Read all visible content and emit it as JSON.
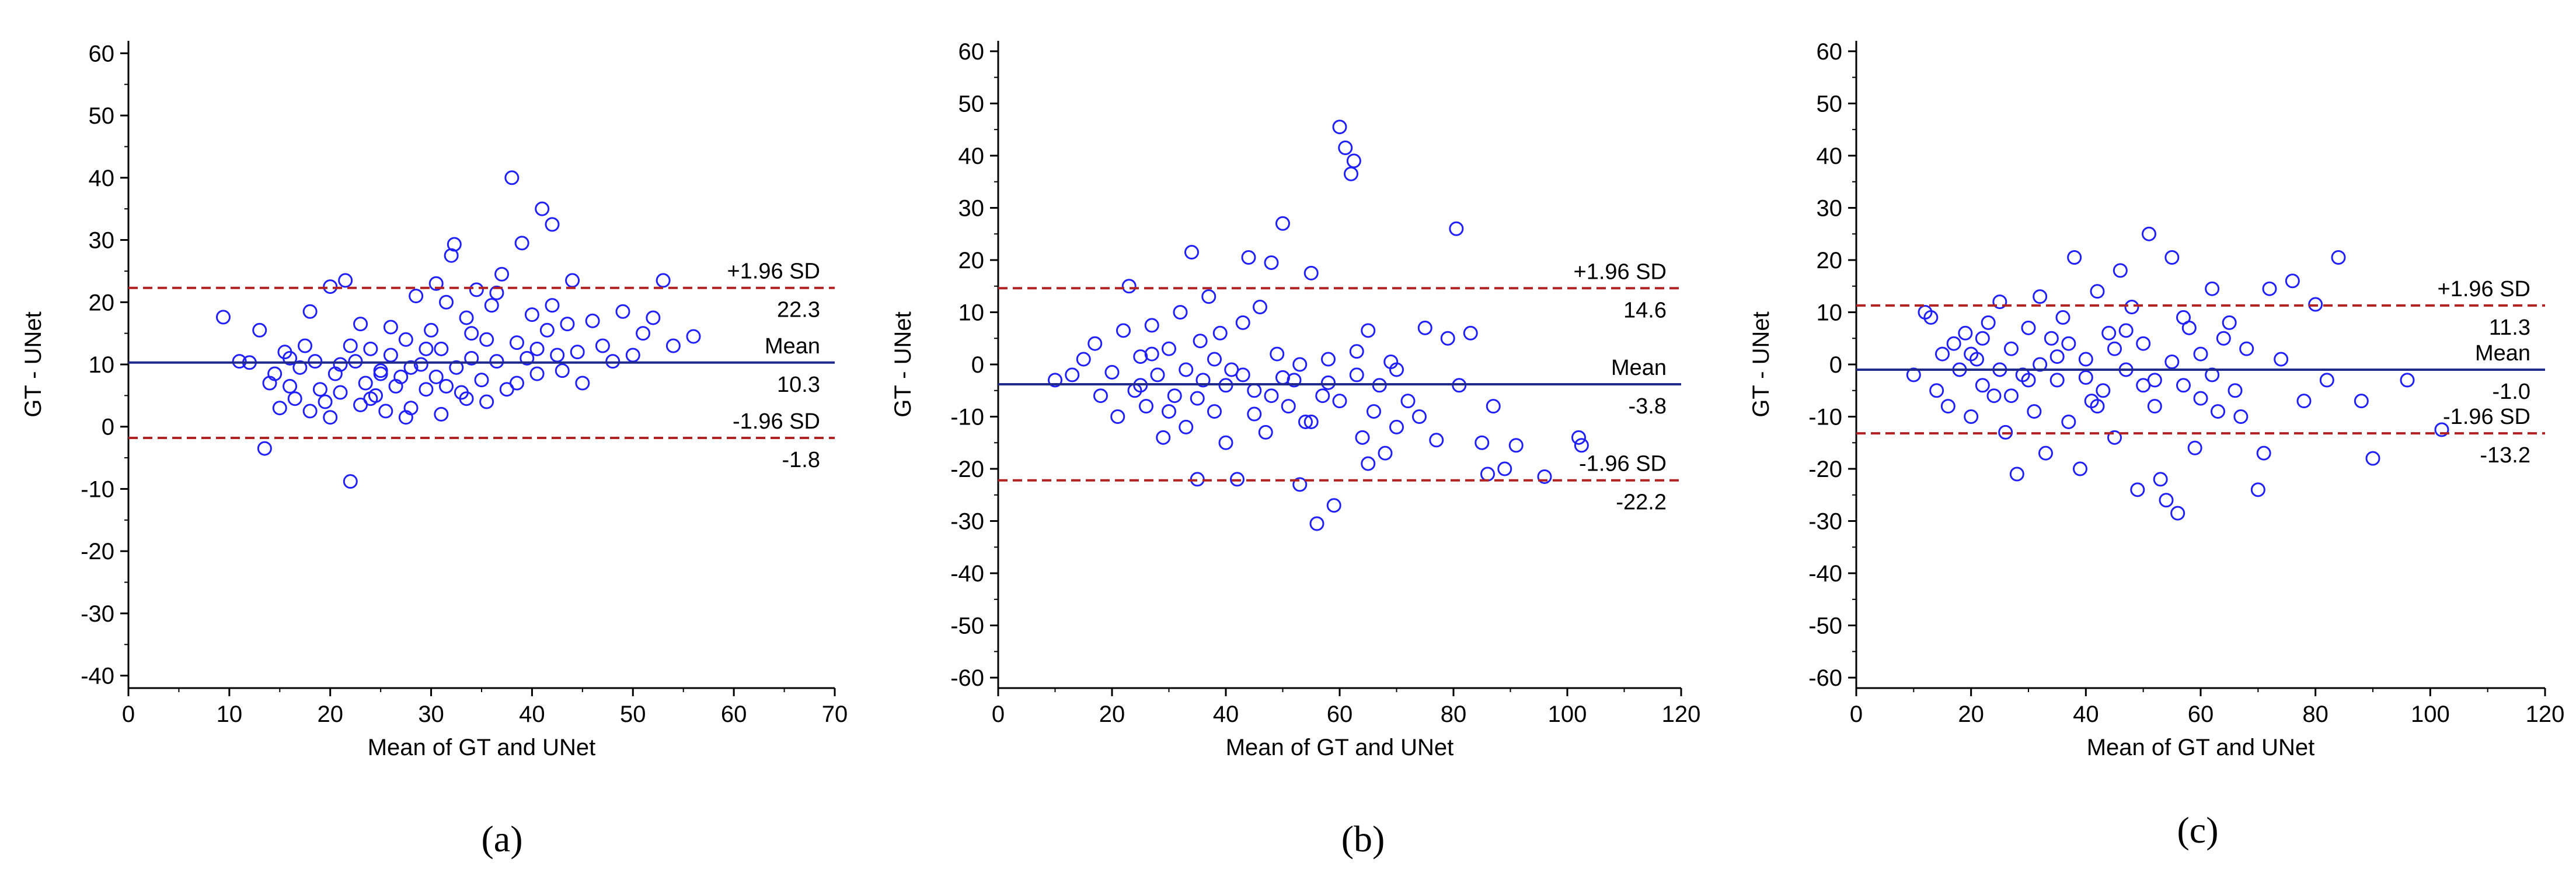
{
  "chart_data": [
    {
      "type": "scatter",
      "panel_caption": "(a)",
      "xlabel": "Mean of GT and UNet",
      "ylabel": "GT - UNet",
      "xlim": [
        0,
        70
      ],
      "ylim": [
        -42,
        62
      ],
      "xticks": [
        0,
        10,
        20,
        30,
        40,
        50,
        60,
        70
      ],
      "yticks": [
        -40,
        -30,
        -20,
        -10,
        0,
        10,
        20,
        30,
        40,
        50,
        60
      ],
      "marker_color": "#1f1fff",
      "mean_line_color": "#1f2a8a",
      "limit_line_color": "#b22222",
      "upper_label": "+1.96 SD",
      "upper_value": "22.3",
      "mean_label": "Mean",
      "mean_value": "10.3",
      "lower_label": "-1.96 SD",
      "lower_value": "-1.8",
      "upper": 22.3,
      "mean": 10.3,
      "lower": -1.8,
      "points": [
        [
          9.4,
          17.6
        ],
        [
          11.0,
          10.5
        ],
        [
          12.0,
          10.3
        ],
        [
          13.5,
          -3.5
        ],
        [
          13.0,
          15.5
        ],
        [
          14.0,
          7.0
        ],
        [
          14.5,
          8.5
        ],
        [
          15.0,
          3.0
        ],
        [
          15.5,
          12.0
        ],
        [
          16.0,
          6.5
        ],
        [
          16.5,
          4.5
        ],
        [
          17.0,
          9.5
        ],
        [
          17.5,
          13.0
        ],
        [
          18.0,
          18.5
        ],
        [
          18.5,
          10.5
        ],
        [
          19.0,
          6.0
        ],
        [
          19.5,
          4.0
        ],
        [
          20.0,
          22.5
        ],
        [
          20.5,
          8.5
        ],
        [
          21.0,
          5.5
        ],
        [
          21.5,
          23.5
        ],
        [
          22.0,
          -8.8
        ],
        [
          22.5,
          10.5
        ],
        [
          23.0,
          3.5
        ],
        [
          23.5,
          7.0
        ],
        [
          24.0,
          12.5
        ],
        [
          24.5,
          5.0
        ],
        [
          25.0,
          9.0
        ],
        [
          25.5,
          2.5
        ],
        [
          26.0,
          11.5
        ],
        [
          26.5,
          6.5
        ],
        [
          27.0,
          8.0
        ],
        [
          27.5,
          14.0
        ],
        [
          28.0,
          3.0
        ],
        [
          28.5,
          21.0
        ],
        [
          29.0,
          10.0
        ],
        [
          29.5,
          6.0
        ],
        [
          30.0,
          15.5
        ],
        [
          30.5,
          8.0
        ],
        [
          31.0,
          12.5
        ],
        [
          31.5,
          20.0
        ],
        [
          32.0,
          27.5
        ],
        [
          32.5,
          9.5
        ],
        [
          33.0,
          5.5
        ],
        [
          33.5,
          17.5
        ],
        [
          34.0,
          11.0
        ],
        [
          34.5,
          22.0
        ],
        [
          35.0,
          7.5
        ],
        [
          35.5,
          14.0
        ],
        [
          36.0,
          19.5
        ],
        [
          36.5,
          10.5
        ],
        [
          37.0,
          24.5
        ],
        [
          37.5,
          6.0
        ],
        [
          38.0,
          40.0
        ],
        [
          38.5,
          13.5
        ],
        [
          39.0,
          29.5
        ],
        [
          39.5,
          11.0
        ],
        [
          40.0,
          18.0
        ],
        [
          40.5,
          8.5
        ],
        [
          41.0,
          35.0
        ],
        [
          41.5,
          15.5
        ],
        [
          42.0,
          32.5
        ],
        [
          42.5,
          11.5
        ],
        [
          43.0,
          9.0
        ],
        [
          43.5,
          16.5
        ],
        [
          44.0,
          23.5
        ],
        [
          44.5,
          12.0
        ],
        [
          45.0,
          7.0
        ],
        [
          46.0,
          17.0
        ],
        [
          47.0,
          13.0
        ],
        [
          48.0,
          10.5
        ],
        [
          49.0,
          18.5
        ],
        [
          50.0,
          11.5
        ],
        [
          51.0,
          15.0
        ],
        [
          52.0,
          17.5
        ],
        [
          53.0,
          23.5
        ],
        [
          54.0,
          13.0
        ],
        [
          56.0,
          14.5
        ],
        [
          32.3,
          29.3
        ],
        [
          30.5,
          23.0
        ],
        [
          33.5,
          4.5
        ],
        [
          31.0,
          2.0
        ],
        [
          27.5,
          1.5
        ],
        [
          20.0,
          1.5
        ],
        [
          22.0,
          13.0
        ],
        [
          25.0,
          8.5
        ],
        [
          29.5,
          12.5
        ],
        [
          35.5,
          4.0
        ],
        [
          38.5,
          7.0
        ],
        [
          24.0,
          4.5
        ],
        [
          21.0,
          10.0
        ],
        [
          18.0,
          2.5
        ],
        [
          16.0,
          11.0
        ],
        [
          26.0,
          16.0
        ],
        [
          28.0,
          9.5
        ],
        [
          34.0,
          15.0
        ],
        [
          36.5,
          21.5
        ],
        [
          40.5,
          12.5
        ],
        [
          42.0,
          19.5
        ],
        [
          23.0,
          16.5
        ],
        [
          31.5,
          6.5
        ]
      ]
    },
    {
      "type": "scatter",
      "panel_caption": "(b)",
      "xlabel": "Mean of GT and UNet",
      "ylabel": "GT - UNet",
      "xlim": [
        0,
        120
      ],
      "ylim": [
        -62,
        62
      ],
      "xticks": [
        0,
        20,
        40,
        60,
        80,
        100,
        120
      ],
      "yticks": [
        -60,
        -50,
        -40,
        -30,
        -20,
        -10,
        0,
        10,
        20,
        30,
        40,
        50,
        60
      ],
      "marker_color": "#1f1fff",
      "mean_line_color": "#1f2a8a",
      "limit_line_color": "#b22222",
      "upper_label": "+1.96 SD",
      "upper_value": "14.6",
      "mean_label": "Mean",
      "mean_value": "-3.8",
      "lower_label": "-1.96 SD",
      "lower_value": "-22.2",
      "upper": 14.6,
      "mean": -3.8,
      "lower": -22.2,
      "points": [
        [
          10.0,
          -3.0
        ],
        [
          13.0,
          -2.0
        ],
        [
          15.0,
          1.0
        ],
        [
          17.0,
          4.0
        ],
        [
          18.0,
          -6.0
        ],
        [
          20.0,
          -1.5
        ],
        [
          21.0,
          -10.0
        ],
        [
          22.0,
          6.5
        ],
        [
          23.0,
          15.0
        ],
        [
          24.0,
          -5.0
        ],
        [
          25.0,
          1.5
        ],
        [
          26.0,
          -8.0
        ],
        [
          27.0,
          7.5
        ],
        [
          28.0,
          -2.0
        ],
        [
          29.0,
          -14.0
        ],
        [
          30.0,
          3.0
        ],
        [
          31.0,
          -6.0
        ],
        [
          32.0,
          10.0
        ],
        [
          33.0,
          -12.0
        ],
        [
          34.0,
          21.5
        ],
        [
          35.0,
          -22.0
        ],
        [
          35.5,
          4.5
        ],
        [
          36.0,
          -3.0
        ],
        [
          37.0,
          13.0
        ],
        [
          38.0,
          -9.0
        ],
        [
          39.0,
          6.0
        ],
        [
          40.0,
          -15.0
        ],
        [
          41.0,
          -1.0
        ],
        [
          42.0,
          -22.0
        ],
        [
          43.0,
          8.0
        ],
        [
          44.0,
          20.5
        ],
        [
          45.0,
          -5.0
        ],
        [
          46.0,
          11.0
        ],
        [
          47.0,
          -13.0
        ],
        [
          48.0,
          19.5
        ],
        [
          49.0,
          2.0
        ],
        [
          50.0,
          27.0
        ],
        [
          51.0,
          -8.0
        ],
        [
          52.0,
          -3.0
        ],
        [
          53.0,
          -23.0
        ],
        [
          54.0,
          -11.0
        ],
        [
          55.0,
          17.5
        ],
        [
          56.0,
          -30.5
        ],
        [
          57.0,
          -6.0
        ],
        [
          58.0,
          1.0
        ],
        [
          59.0,
          -27.0
        ],
        [
          60.0,
          45.5
        ],
        [
          61.0,
          41.5
        ],
        [
          62.0,
          36.5
        ],
        [
          62.5,
          39.0
        ],
        [
          63.0,
          -2.0
        ],
        [
          64.0,
          -14.0
        ],
        [
          65.0,
          6.5
        ],
        [
          66.0,
          -9.0
        ],
        [
          67.0,
          -4.0
        ],
        [
          68.0,
          -17.0
        ],
        [
          69.0,
          0.5
        ],
        [
          70.0,
          -12.0
        ],
        [
          72.0,
          -7.0
        ],
        [
          74.0,
          -10.0
        ],
        [
          75.0,
          7.0
        ],
        [
          77.0,
          -14.5
        ],
        [
          79.0,
          5.0
        ],
        [
          80.5,
          26.0
        ],
        [
          81.0,
          -4.0
        ],
        [
          83.0,
          6.0
        ],
        [
          85.0,
          -15.0
        ],
        [
          86.0,
          -21.0
        ],
        [
          87.0,
          -8.0
        ],
        [
          89.0,
          -20.0
        ],
        [
          91.0,
          -15.5
        ],
        [
          96.0,
          -21.5
        ],
        [
          102.0,
          -14.0
        ],
        [
          102.5,
          -15.5
        ],
        [
          25.0,
          -4.0
        ],
        [
          30.0,
          -9.0
        ],
        [
          35.0,
          -6.5
        ],
        [
          40.0,
          -4.0
        ],
        [
          45.0,
          -9.5
        ],
        [
          50.0,
          -2.5
        ],
        [
          55.0,
          -11.0
        ],
        [
          60.0,
          -7.0
        ],
        [
          65.0,
          -19.0
        ],
        [
          70.0,
          -1.0
        ],
        [
          27.0,
          2.0
        ],
        [
          33.0,
          -1.0
        ],
        [
          38.0,
          1.0
        ],
        [
          43.0,
          -2.0
        ],
        [
          48.0,
          -6.0
        ],
        [
          53.0,
          0.0
        ],
        [
          58.0,
          -3.5
        ],
        [
          63.0,
          2.5
        ]
      ]
    },
    {
      "type": "scatter",
      "panel_caption": "(c)",
      "xlabel": "Mean of GT and UNet",
      "ylabel": "GT - UNet",
      "xlim": [
        0,
        120
      ],
      "ylim": [
        -62,
        62
      ],
      "xticks": [
        0,
        20,
        40,
        60,
        80,
        100,
        120
      ],
      "yticks": [
        -60,
        -50,
        -40,
        -30,
        -20,
        -10,
        0,
        10,
        20,
        30,
        40,
        50,
        60
      ],
      "marker_color": "#1f1fff",
      "mean_line_color": "#1f2a8a",
      "limit_line_color": "#b22222",
      "upper_label": "+1.96 SD",
      "upper_value": "11.3",
      "mean_label": "Mean",
      "mean_value": "-1.0",
      "lower_label": "-1.96 SD",
      "lower_value": "-13.2",
      "upper": 11.3,
      "mean": -1.0,
      "lower": -13.2,
      "points": [
        [
          10.0,
          -2.0
        ],
        [
          12.0,
          10.0
        ],
        [
          13.0,
          9.0
        ],
        [
          14.0,
          -5.0
        ],
        [
          15.0,
          2.0
        ],
        [
          16.0,
          -8.0
        ],
        [
          17.0,
          4.0
        ],
        [
          18.0,
          -1.0
        ],
        [
          19.0,
          6.0
        ],
        [
          20.0,
          -10.0
        ],
        [
          21.0,
          1.0
        ],
        [
          22.0,
          -4.0
        ],
        [
          23.0,
          8.0
        ],
        [
          24.0,
          -6.0
        ],
        [
          25.0,
          12.0
        ],
        [
          26.0,
          -13.0
        ],
        [
          27.0,
          3.0
        ],
        [
          28.0,
          -21.0
        ],
        [
          29.0,
          -2.0
        ],
        [
          30.0,
          7.0
        ],
        [
          31.0,
          -9.0
        ],
        [
          32.0,
          13.0
        ],
        [
          33.0,
          -17.0
        ],
        [
          34.0,
          5.0
        ],
        [
          35.0,
          -3.0
        ],
        [
          36.0,
          9.0
        ],
        [
          37.0,
          -11.0
        ],
        [
          38.0,
          20.5
        ],
        [
          39.0,
          -20.0
        ],
        [
          40.0,
          1.0
        ],
        [
          41.0,
          -7.0
        ],
        [
          42.0,
          14.0
        ],
        [
          43.0,
          -5.0
        ],
        [
          44.0,
          6.0
        ],
        [
          45.0,
          -14.0
        ],
        [
          46.0,
          18.0
        ],
        [
          47.0,
          -1.0
        ],
        [
          48.0,
          11.0
        ],
        [
          49.0,
          -24.0
        ],
        [
          50.0,
          4.0
        ],
        [
          51.0,
          25.0
        ],
        [
          52.0,
          -8.0
        ],
        [
          53.0,
          -22.0
        ],
        [
          54.0,
          -26.0
        ],
        [
          55.0,
          20.5
        ],
        [
          56.0,
          -28.5
        ],
        [
          57.0,
          -4.0
        ],
        [
          58.0,
          7.0
        ],
        [
          59.0,
          -16.0
        ],
        [
          60.0,
          2.0
        ],
        [
          62.0,
          14.5
        ],
        [
          63.0,
          -9.0
        ],
        [
          64.0,
          5.0
        ],
        [
          66.0,
          -5.0
        ],
        [
          68.0,
          3.0
        ],
        [
          70.0,
          -24.0
        ],
        [
          71.0,
          -17.0
        ],
        [
          72.0,
          14.5
        ],
        [
          74.0,
          1.0
        ],
        [
          76.0,
          16.0
        ],
        [
          78.0,
          -7.0
        ],
        [
          80.0,
          11.5
        ],
        [
          82.0,
          -3.0
        ],
        [
          84.0,
          20.5
        ],
        [
          88.0,
          -7.0
        ],
        [
          90.0,
          -18.0
        ],
        [
          96.0,
          -3.0
        ],
        [
          102.0,
          -12.5
        ],
        [
          20.0,
          2.0
        ],
        [
          25.0,
          -1.0
        ],
        [
          30.0,
          -3.0
        ],
        [
          35.0,
          1.5
        ],
        [
          40.0,
          -2.5
        ],
        [
          45.0,
          3.0
        ],
        [
          50.0,
          -4.0
        ],
        [
          55.0,
          0.5
        ],
        [
          60.0,
          -6.5
        ],
        [
          65.0,
          8.0
        ],
        [
          22.0,
          5.0
        ],
        [
          27.0,
          -6.0
        ],
        [
          32.0,
          0.0
        ],
        [
          37.0,
          4.0
        ],
        [
          42.0,
          -8.0
        ],
        [
          47.0,
          6.5
        ],
        [
          52.0,
          -3.0
        ],
        [
          57.0,
          9.0
        ],
        [
          62.0,
          -2.0
        ],
        [
          67.0,
          -10.0
        ]
      ]
    }
  ]
}
